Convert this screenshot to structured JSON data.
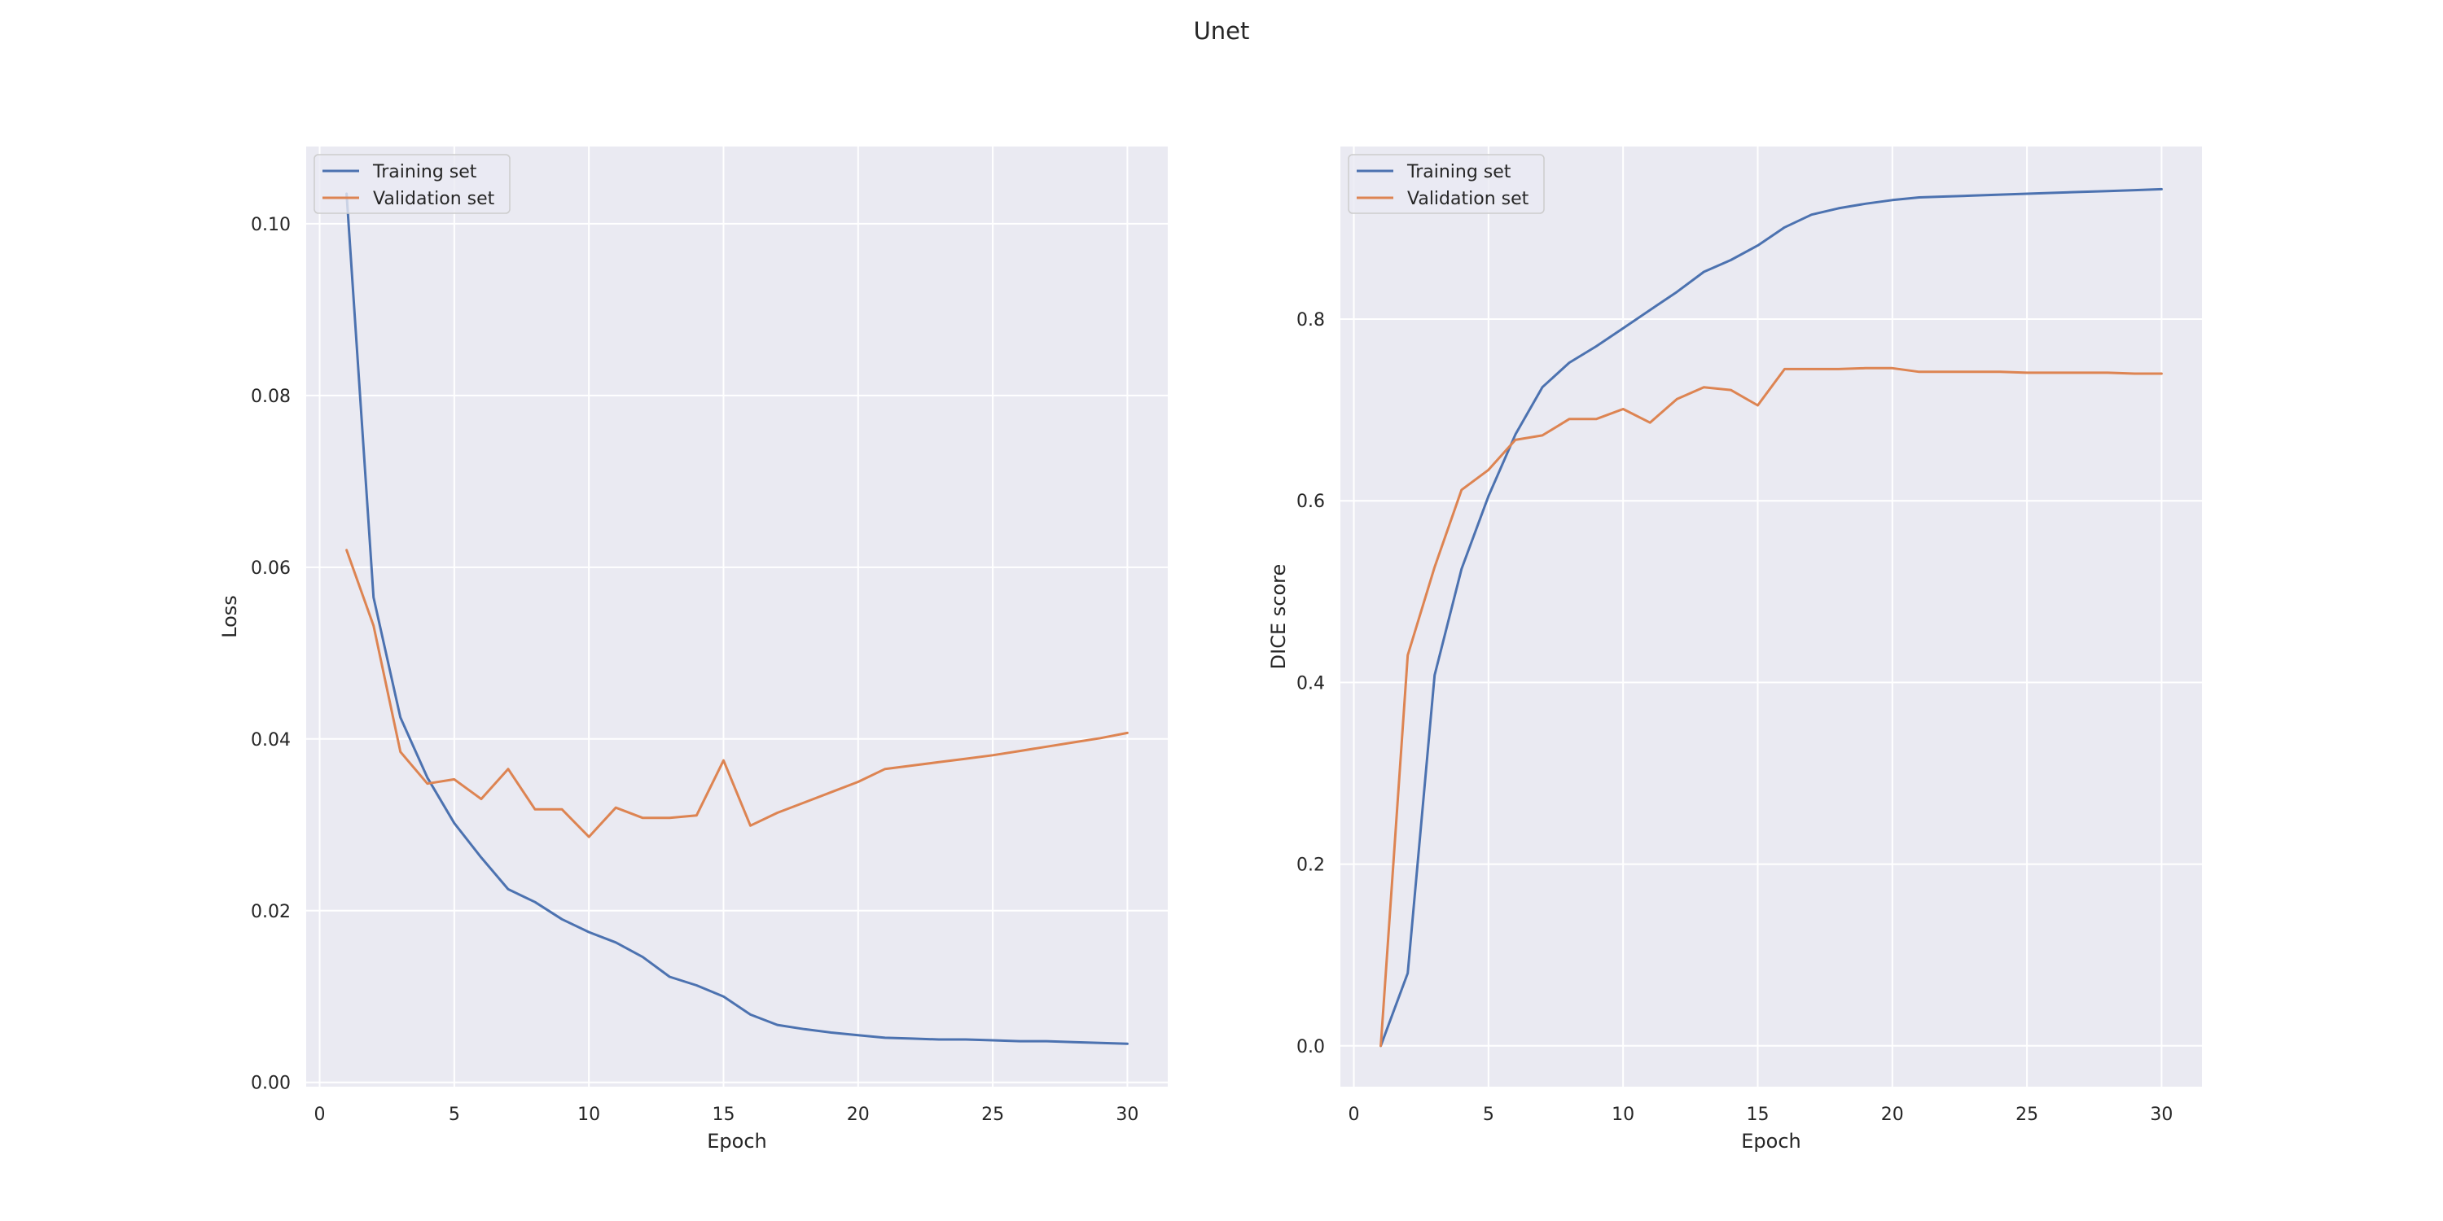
{
  "figure": {
    "title": "Unet"
  },
  "colors": {
    "training": "#4c72b0",
    "validation": "#dd8452",
    "plot_background": "#eaeaf2",
    "grid": "#ffffff",
    "text": "#262626"
  },
  "chart_data": [
    {
      "type": "line",
      "title": "",
      "xlabel": "Epoch",
      "ylabel": "Loss",
      "xlim": [
        -0.5,
        31.5
      ],
      "ylim": [
        -0.0005,
        0.109
      ],
      "xticks": [
        0,
        5,
        10,
        15,
        20,
        25,
        30
      ],
      "xtick_labels": [
        "0",
        "5",
        "10",
        "15",
        "20",
        "25",
        "30"
      ],
      "yticks": [
        0.0,
        0.02,
        0.04,
        0.06,
        0.08,
        0.1
      ],
      "ytick_labels": [
        "0.00",
        "0.02",
        "0.04",
        "0.06",
        "0.08",
        "0.10"
      ],
      "grid": true,
      "legend": {
        "position": "top-left",
        "entries": [
          "Training set",
          "Validation set"
        ]
      },
      "series": [
        {
          "name": "Training set",
          "x": [
            1,
            2,
            3,
            4,
            5,
            6,
            7,
            8,
            9,
            10,
            11,
            12,
            13,
            14,
            15,
            16,
            17,
            18,
            19,
            20,
            21,
            22,
            23,
            24,
            25,
            26,
            27,
            28,
            29,
            30
          ],
          "y": [
            0.1035,
            0.0565,
            0.0425,
            0.0355,
            0.0302,
            0.0262,
            0.0225,
            0.021,
            0.019,
            0.0175,
            0.0163,
            0.0146,
            0.0123,
            0.0113,
            0.01,
            0.0079,
            0.0067,
            0.0062,
            0.0058,
            0.0055,
            0.0052,
            0.0051,
            0.005,
            0.005,
            0.0049,
            0.0048,
            0.0048,
            0.0047,
            0.0046,
            0.0045
          ]
        },
        {
          "name": "Validation set",
          "x": [
            1,
            2,
            3,
            4,
            5,
            6,
            7,
            8,
            9,
            10,
            11,
            12,
            13,
            14,
            15,
            16,
            17,
            18,
            19,
            20,
            21,
            22,
            23,
            24,
            25,
            26,
            27,
            28,
            29,
            30
          ],
          "y": [
            0.062,
            0.0532,
            0.0385,
            0.0348,
            0.0353,
            0.033,
            0.0365,
            0.0318,
            0.0318,
            0.0286,
            0.032,
            0.0308,
            0.0308,
            0.0311,
            0.0375,
            0.0299,
            0.0314,
            0.0326,
            0.0338,
            0.035,
            0.0365,
            0.0369,
            0.0373,
            0.0377,
            0.0381,
            0.0386,
            0.0391,
            0.0396,
            0.0401,
            0.0407
          ]
        }
      ]
    },
    {
      "type": "line",
      "title": "",
      "xlabel": "Epoch",
      "ylabel": "DICE score",
      "xlim": [
        -0.5,
        31.5
      ],
      "ylim": [
        -0.045,
        0.99
      ],
      "xticks": [
        0,
        5,
        10,
        15,
        20,
        25,
        30
      ],
      "xtick_labels": [
        "0",
        "5",
        "10",
        "15",
        "20",
        "25",
        "30"
      ],
      "yticks": [
        0.0,
        0.2,
        0.4,
        0.6,
        0.8
      ],
      "ytick_labels": [
        "0.0",
        "0.2",
        "0.4",
        "0.6",
        "0.8"
      ],
      "grid": true,
      "legend": {
        "position": "top-left",
        "entries": [
          "Training set",
          "Validation set"
        ]
      },
      "series": [
        {
          "name": "Training set",
          "x": [
            1,
            2,
            3,
            4,
            5,
            6,
            7,
            8,
            9,
            10,
            11,
            12,
            13,
            14,
            15,
            16,
            17,
            18,
            19,
            20,
            21,
            22,
            23,
            24,
            25,
            26,
            27,
            28,
            29,
            30
          ],
          "y": [
            0.0,
            0.08,
            0.408,
            0.525,
            0.605,
            0.673,
            0.725,
            0.752,
            0.77,
            0.79,
            0.81,
            0.83,
            0.852,
            0.865,
            0.881,
            0.901,
            0.915,
            0.922,
            0.927,
            0.931,
            0.934,
            0.935,
            0.936,
            0.937,
            0.938,
            0.939,
            0.94,
            0.941,
            0.942,
            0.943
          ]
        },
        {
          "name": "Validation set",
          "x": [
            1,
            2,
            3,
            4,
            5,
            6,
            7,
            8,
            9,
            10,
            11,
            12,
            13,
            14,
            15,
            16,
            17,
            18,
            19,
            20,
            21,
            22,
            23,
            24,
            25,
            26,
            27,
            28,
            29,
            30
          ],
          "y": [
            0.0,
            0.43,
            0.527,
            0.612,
            0.634,
            0.667,
            0.672,
            0.69,
            0.69,
            0.701,
            0.686,
            0.712,
            0.725,
            0.722,
            0.705,
            0.745,
            0.745,
            0.745,
            0.746,
            0.746,
            0.742,
            0.742,
            0.742,
            0.742,
            0.741,
            0.741,
            0.741,
            0.741,
            0.74,
            0.74
          ]
        }
      ]
    }
  ]
}
